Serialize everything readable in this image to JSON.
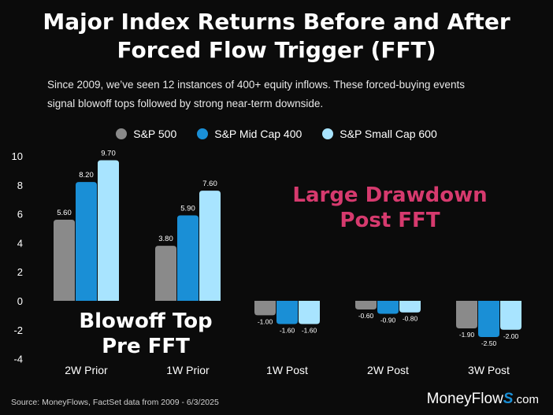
{
  "title_line1": "Major Index Returns Before and After",
  "title_line2": "Forced Flow Trigger (FFT)",
  "subtitle_line1": "Since 2009, we’ve seen 12 instances of 400+ equity inflows. These forced-buying events",
  "subtitle_line2": "signal blowoff tops followed by strong near-term downside.",
  "annotation_drawdown_line1": "Large Drawdown",
  "annotation_drawdown_line2": "Post FFT",
  "annotation_blowoff_line1": "Blowoff Top",
  "annotation_blowoff_line2": "Pre FFT",
  "source": "Source: MoneyFlows, FactSet data from 2009 - 6/3/2025",
  "brand": {
    "name": "MoneyFlow",
    "s": "S",
    "domain": ".com"
  },
  "colors": {
    "annotation_drawdown": "#d63a6e",
    "brand_accent": "#1a8fd6"
  },
  "chart_data": {
    "type": "bar",
    "title": "Major Index Returns Before and After Forced Flow Trigger (FFT)",
    "categories": [
      "2W Prior",
      "1W Prior",
      "1W Post",
      "2W Post",
      "3W Post"
    ],
    "series": [
      {
        "name": "S&P 500",
        "color": "#8a8a8a",
        "values": [
          5.6,
          3.8,
          -1.0,
          -0.6,
          -1.9
        ]
      },
      {
        "name": "S&P Mid Cap 400",
        "color": "#1a8fd6",
        "values": [
          8.2,
          5.9,
          -1.6,
          -0.9,
          -2.5
        ]
      },
      {
        "name": "S&P Small Cap 600",
        "color": "#a8e4ff",
        "values": [
          9.7,
          7.6,
          -1.6,
          -0.8,
          -2.0
        ]
      }
    ],
    "value_labels": [
      [
        "5.60",
        "3.80",
        "-1.00",
        "-0.60",
        "-1.90"
      ],
      [
        "8.20",
        "5.90",
        "-1.60",
        "-0.90",
        "-2.50"
      ],
      [
        "9.70",
        "7.60",
        "-1.60",
        "-0.80",
        "-2.00"
      ]
    ],
    "yticks": [
      "10",
      "8",
      "6",
      "4",
      "2",
      "0",
      "-2",
      "-4"
    ],
    "ytick_values": [
      10,
      8,
      6,
      4,
      2,
      0,
      -2,
      -4
    ],
    "ylim": [
      -4,
      10
    ],
    "grid": false,
    "legend": "top"
  }
}
